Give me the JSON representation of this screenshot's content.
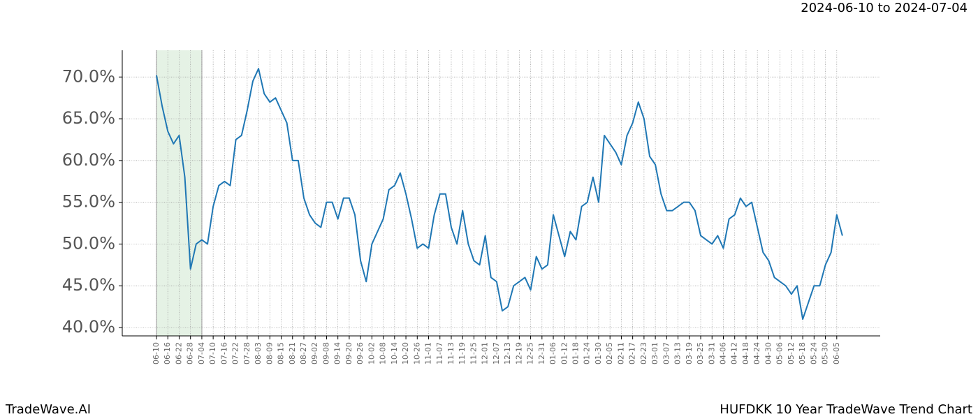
{
  "chart_data": {
    "type": "line",
    "title": "2024-06-10 to 2024-07-04",
    "footer_left": "TradeWave.AI",
    "footer_right": "HUFDKK 10 Year TradeWave Trend Chart",
    "categories": [
      "06-10",
      null,
      "06-16",
      null,
      "06-22",
      null,
      "06-28",
      null,
      "07-04",
      null,
      "07-10",
      null,
      "07-16",
      null,
      "07-22",
      null,
      "07-28",
      null,
      "08-03",
      null,
      "08-09",
      null,
      "08-15",
      null,
      "08-21",
      null,
      "08-27",
      null,
      "09-02",
      null,
      "09-08",
      null,
      "09-14",
      null,
      "09-20",
      null,
      "09-26",
      null,
      "10-02",
      null,
      "10-08",
      null,
      "10-14",
      null,
      "10-20",
      null,
      "10-26",
      null,
      "11-01",
      null,
      "11-07",
      null,
      "11-13",
      null,
      "11-19",
      null,
      "11-25",
      null,
      "12-01",
      null,
      "12-07",
      null,
      "12-13",
      null,
      "12-19",
      null,
      "12-25",
      null,
      "12-31",
      null,
      "01-06",
      null,
      "01-12",
      null,
      "01-18",
      null,
      "01-24",
      null,
      "01-30",
      null,
      "02-05",
      null,
      "02-11",
      null,
      "02-17",
      null,
      "02-23",
      null,
      "03-01",
      null,
      "03-07",
      null,
      "03-13",
      null,
      "03-19",
      null,
      "03-25",
      null,
      "03-31",
      null,
      "04-06",
      null,
      "04-12",
      null,
      "04-18",
      null,
      "04-24",
      null,
      "04-30",
      null,
      "05-06",
      null,
      "05-12",
      null,
      "05-18",
      null,
      "05-24",
      null,
      "05-30",
      null,
      "06-05",
      null
    ],
    "series": [
      {
        "name": "HUFDKK",
        "color": "#1f77b4",
        "values": [
          70.2,
          66.5,
          63.5,
          62,
          63,
          58,
          47,
          50,
          50.5,
          50,
          54.5,
          57,
          57.5,
          57,
          62.5,
          63,
          66,
          69.5,
          71,
          68,
          67,
          67.5,
          66,
          64.5,
          60,
          60,
          55.5,
          53.5,
          52.5,
          52,
          55,
          55,
          53,
          55.5,
          55.5,
          53.5,
          48,
          45.5,
          50,
          51.5,
          53,
          56.5,
          57,
          58.5,
          56,
          53,
          49.5,
          50,
          49.5,
          53.5,
          56,
          56,
          52,
          50,
          54,
          50,
          48,
          47.5,
          51,
          46,
          45.5,
          42,
          42.5,
          45,
          45.5,
          46,
          44.5,
          48.5,
          47,
          47.5,
          53.5,
          51,
          48.5,
          51.5,
          50.5,
          54.5,
          55,
          58,
          55,
          63,
          62,
          61,
          59.5,
          63,
          64.5,
          67,
          65,
          60.5,
          59.5,
          56,
          54,
          54,
          54.5,
          55,
          55,
          54,
          51,
          50.5,
          50,
          51,
          49.5,
          53,
          53.5,
          55.5,
          54.5,
          55,
          52,
          49,
          48,
          46,
          45.5,
          45,
          44,
          45,
          41,
          43,
          45,
          45,
          47.5,
          49,
          53.5,
          51
        ]
      }
    ],
    "ylim": [
      39,
      73.2
    ],
    "yticks": [
      {
        "value": 40,
        "label": "40.0%"
      },
      {
        "value": 45,
        "label": "45.0%"
      },
      {
        "value": 50,
        "label": "50.0%"
      },
      {
        "value": 55,
        "label": "55.0%"
      },
      {
        "value": 60,
        "label": "60.0%"
      },
      {
        "value": 65,
        "label": "65.0%"
      },
      {
        "value": 70,
        "label": "70.0%"
      }
    ],
    "grid": true
  }
}
